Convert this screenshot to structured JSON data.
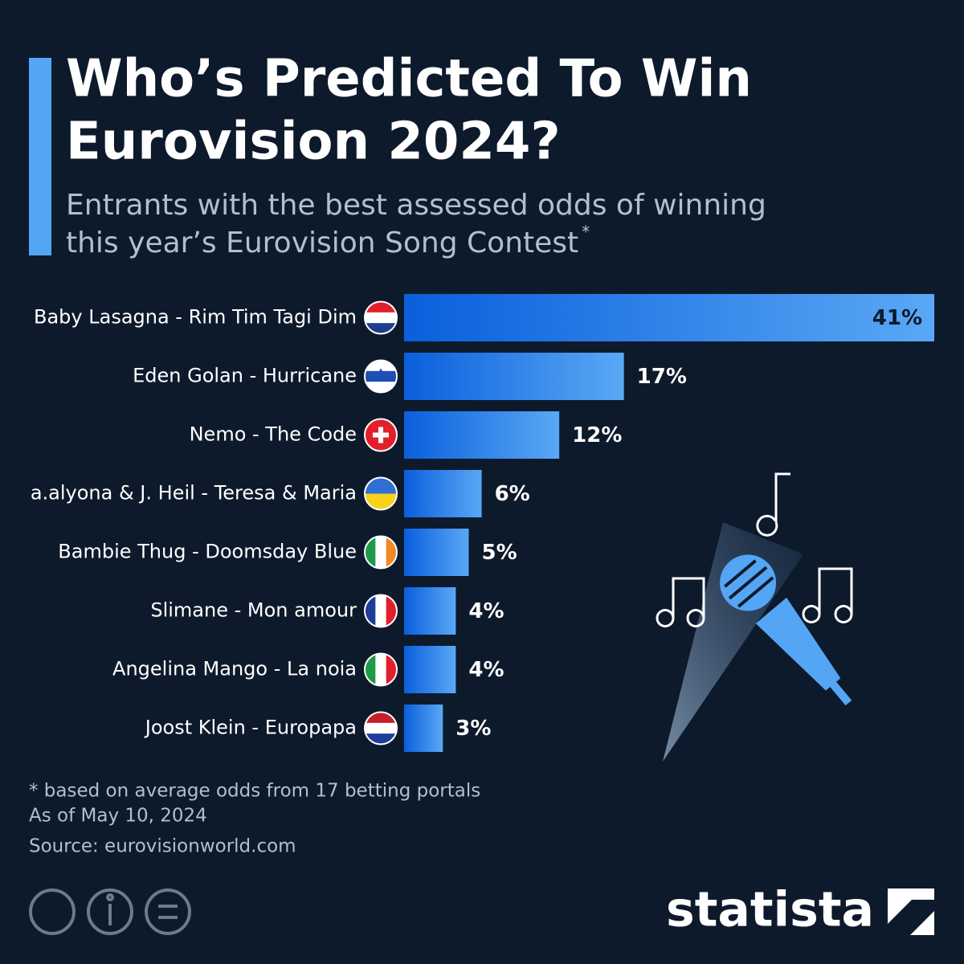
{
  "chart_data": {
    "type": "bar",
    "orientation": "horizontal",
    "title": [
      "Who’s Predicted To Win",
      "Eurovision 2024?"
    ],
    "subtitle": [
      "Entrants with the best assessed odds of winning",
      "this year’s Eurovision Song Contest"
    ],
    "subtitle_marker": "*",
    "categories": [
      "Baby Lasagna - Rim Tim Tagi Dim",
      "Eden Golan - Hurricane",
      "Nemo - The Code",
      "a.alyona & J. Heil - Teresa & Maria",
      "Bambie Thug - Doomsday Blue",
      "Slimane - Mon amour",
      "Angelina Mango - La noia",
      "Joost Klein - Europapa"
    ],
    "values": [
      41,
      17,
      12,
      6,
      5,
      4,
      4,
      3
    ],
    "value_labels": [
      "41%",
      "17%",
      "12%",
      "6%",
      "5%",
      "4%",
      "4%",
      "3%"
    ],
    "color": [
      "#0a5fdc",
      "#5aa8f5"
    ],
    "notes": [
      "* based on average odds from 17 betting portals",
      "As of May 10, 2024"
    ],
    "source": "Source: eurovisionworld.com",
    "brand": "statista"
  }
}
